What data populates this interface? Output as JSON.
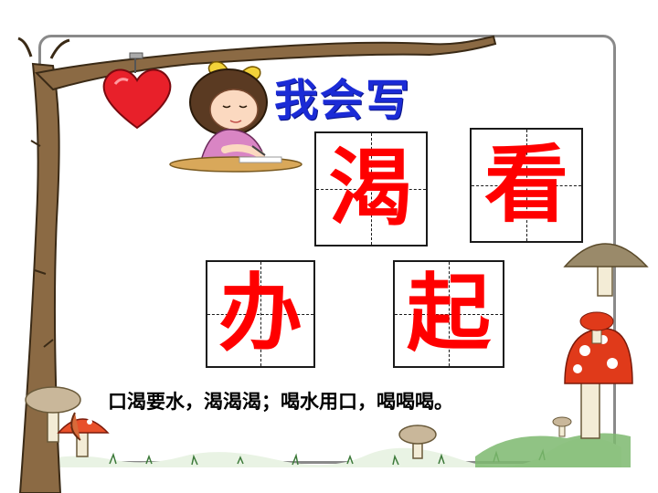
{
  "title": "我会写",
  "characters": [
    {
      "char": "渴"
    },
    {
      "char": "看"
    },
    {
      "char": "办"
    },
    {
      "char": "起"
    }
  ],
  "rhyme": "口渴要水，渴渴渴；喝水用口，喝喝喝。",
  "colors": {
    "title": "#1b2bd6",
    "characters": "#ff0000",
    "grid": "#1a1a1a",
    "heart": "#e8202a"
  },
  "decorations": [
    "tree-branch",
    "heart",
    "girl-writing",
    "mushrooms",
    "grass"
  ]
}
